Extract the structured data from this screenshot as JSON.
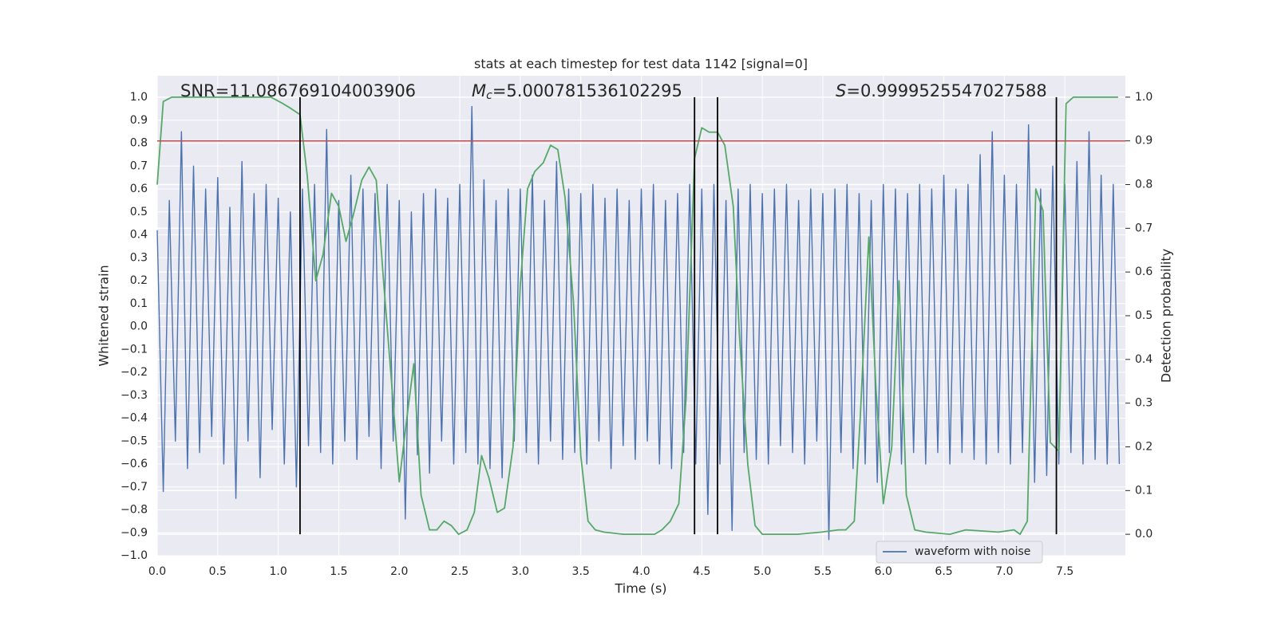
{
  "chart_data": {
    "type": "line",
    "title": "stats at each timestep for test data 1142 [signal=0]",
    "x_label": "Time (s)",
    "y_label": "Whitened strain",
    "y2_label": "Detection probability",
    "xlim": [
      0,
      8.0
    ],
    "ylim": [
      -1.0,
      1.094
    ],
    "y2lim": [
      -0.049,
      1.049
    ],
    "xticks": [
      {
        "value": 0,
        "label": "0.0"
      },
      0.5,
      {
        "value": 1,
        "label": "1.0"
      },
      1.5,
      {
        "value": 2,
        "label": "2.0"
      },
      2.5,
      {
        "value": 3,
        "label": "3.0"
      },
      3.5,
      {
        "value": 4,
        "label": "4.0"
      },
      4.5,
      {
        "value": 5,
        "label": "5.0"
      },
      5.5,
      {
        "value": 6,
        "label": "6.0"
      },
      6.5,
      {
        "value": 7,
        "label": "7.0"
      },
      7.5
    ],
    "yticks": [
      {
        "value": -1,
        "label": "−1.0"
      },
      {
        "value": -0.9,
        "label": "−0.9"
      },
      {
        "value": -0.8,
        "label": "−0.8"
      },
      {
        "value": -0.7,
        "label": "−0.7"
      },
      {
        "value": -0.6,
        "label": "−0.6"
      },
      {
        "value": -0.5,
        "label": "−0.5"
      },
      {
        "value": -0.4,
        "label": "−0.4"
      },
      {
        "value": -0.3,
        "label": "−0.3"
      },
      {
        "value": -0.2,
        "label": "−0.2"
      },
      {
        "value": -0.1,
        "label": "−0.1"
      },
      {
        "value": 0,
        "label": "0.0"
      },
      0.1,
      0.2,
      0.3,
      0.4,
      0.5,
      0.6,
      0.7,
      0.8,
      0.9,
      {
        "value": 1,
        "label": "1.0"
      }
    ],
    "y2ticks": [
      {
        "value": 0,
        "label": "0.0"
      },
      0.1,
      0.2,
      0.3,
      0.4,
      0.5,
      0.6,
      0.7,
      0.8,
      0.9,
      {
        "value": 1,
        "label": "1.0"
      }
    ],
    "grid": true,
    "legend": "lower right",
    "annotations": [
      {
        "text": "SNR=11.086769104003906"
      },
      {
        "symbol": "M",
        "sub": "c",
        "text": "=5.000781536102295"
      },
      {
        "symbol": "S",
        "text": "=0.9999525547027588"
      }
    ],
    "hline": {
      "y": 0.9,
      "axis": "y2",
      "color": "#c44e52"
    },
    "vlines": {
      "x": [
        1.18,
        4.44,
        4.63,
        7.43
      ],
      "ymin": 0,
      "ymax": 1,
      "axis": "y2",
      "color": "#000000"
    },
    "series": [
      {
        "name": "waveform with noise",
        "color": "#4c72b0",
        "x": [
          0,
          0.05,
          0.1,
          0.15,
          0.2,
          0.25,
          0.3,
          0.35,
          0.4,
          0.45,
          0.5,
          0.55,
          0.6,
          0.65,
          0.7,
          0.75,
          0.8,
          0.85,
          0.9,
          0.95,
          1,
          1.05,
          1.1,
          1.15,
          1.2,
          1.25,
          1.3,
          1.35,
          1.4,
          1.45,
          1.5,
          1.55,
          1.6,
          1.65,
          1.7,
          1.75,
          1.8,
          1.85,
          1.9,
          1.95,
          2,
          2.05,
          2.1,
          2.15,
          2.2,
          2.25,
          2.3,
          2.35,
          2.4,
          2.45,
          2.5,
          2.55,
          2.6,
          2.65,
          2.7,
          2.75,
          2.8,
          2.85,
          2.9,
          2.95,
          3,
          3.05,
          3.1,
          3.15,
          3.2,
          3.25,
          3.3,
          3.35,
          3.4,
          3.45,
          3.5,
          3.55,
          3.6,
          3.65,
          3.7,
          3.75,
          3.8,
          3.85,
          3.9,
          3.95,
          4,
          4.05,
          4.1,
          4.15,
          4.2,
          4.25,
          4.3,
          4.35,
          4.4,
          4.45,
          4.5,
          4.55,
          4.6,
          4.65,
          4.7,
          4.75,
          4.8,
          4.85,
          4.9,
          4.95,
          5,
          5.05,
          5.1,
          5.15,
          5.2,
          5.25,
          5.3,
          5.35,
          5.4,
          5.45,
          5.5,
          5.55,
          5.6,
          5.65,
          5.7,
          5.75,
          5.8,
          5.85,
          5.9,
          5.95,
          6,
          6.05,
          6.1,
          6.15,
          6.2,
          6.25,
          6.3,
          6.35,
          6.4,
          6.45,
          6.5,
          6.55,
          6.6,
          6.65,
          6.7,
          6.75,
          6.8,
          6.85,
          6.9,
          6.95,
          7,
          7.05,
          7.1,
          7.15,
          7.2,
          7.25,
          7.3,
          7.35,
          7.4,
          7.45,
          7.5,
          7.55,
          7.6,
          7.65,
          7.7,
          7.75,
          7.8,
          7.85,
          7.9,
          7.95
        ],
        "values": [
          0.42,
          -0.72,
          0.55,
          -0.5,
          0.85,
          -0.62,
          0.7,
          -0.55,
          0.6,
          -0.48,
          0.65,
          -0.6,
          0.52,
          -0.75,
          0.72,
          -0.5,
          0.58,
          -0.66,
          0.62,
          -0.45,
          0.56,
          -0.6,
          0.5,
          -0.7,
          0.6,
          -0.52,
          0.62,
          -0.55,
          0.86,
          -0.6,
          0.55,
          -0.5,
          0.66,
          -0.58,
          0.6,
          -0.48,
          0.58,
          -0.62,
          0.62,
          -0.5,
          0.55,
          -0.84,
          0.5,
          -0.56,
          0.58,
          -0.64,
          0.6,
          -0.5,
          0.56,
          -0.6,
          0.62,
          -0.55,
          0.96,
          -0.6,
          0.64,
          -0.62,
          0.55,
          -0.66,
          0.6,
          -0.5,
          0.6,
          -0.55,
          0.66,
          -0.6,
          0.55,
          -0.5,
          0.72,
          -0.58,
          0.6,
          -0.55,
          0.58,
          -0.6,
          0.62,
          -0.5,
          0.56,
          -0.62,
          0.6,
          -0.52,
          0.55,
          -0.58,
          0.6,
          -0.5,
          0.62,
          -0.6,
          0.55,
          -0.62,
          0.58,
          -0.55,
          0.62,
          -0.6,
          0.6,
          -0.82,
          0.62,
          -0.6,
          0.55,
          -0.89,
          0.6,
          -0.55,
          0.62,
          -0.58,
          0.58,
          -0.6,
          0.6,
          -0.52,
          0.62,
          -0.55,
          0.55,
          -0.6,
          0.6,
          -0.5,
          0.58,
          -0.93,
          0.6,
          -0.55,
          0.62,
          -0.62,
          0.58,
          -0.6,
          0.55,
          -0.68,
          0.62,
          -0.55,
          0.6,
          -0.6,
          0.58,
          -0.55,
          0.62,
          -0.6,
          0.6,
          -0.55,
          0.66,
          -0.6,
          0.6,
          -0.55,
          0.62,
          -0.58,
          0.75,
          -0.6,
          0.85,
          -0.55,
          0.66,
          -0.6,
          0.62,
          -0.55,
          0.88,
          -0.68,
          0.6,
          -0.65,
          0.7,
          -0.6,
          0.62,
          -0.55,
          0.72,
          -0.6,
          0.85,
          -0.58,
          0.66,
          -0.6,
          0.62,
          -0.6
        ]
      },
      {
        "color": "#55a868",
        "axis": "y2",
        "x": [
          0,
          0.05,
          0.12,
          0.94,
          1.04,
          1.1,
          1.18,
          1.24,
          1.31,
          1.37,
          1.44,
          1.5,
          1.56,
          1.62,
          1.69,
          1.75,
          1.81,
          1.87,
          1.93,
          2.0,
          2.06,
          2.12,
          2.18,
          2.25,
          2.31,
          2.37,
          2.43,
          2.49,
          2.56,
          2.62,
          2.68,
          2.74,
          2.81,
          2.87,
          2.94,
          3.0,
          3.06,
          3.12,
          3.19,
          3.25,
          3.31,
          3.37,
          3.44,
          3.5,
          3.56,
          3.62,
          3.69,
          3.85,
          4.11,
          4.17,
          4.24,
          4.31,
          4.37,
          4.44,
          4.5,
          4.56,
          4.63,
          4.69,
          4.76,
          4.81,
          4.88,
          4.94,
          5.0,
          5.29,
          5.49,
          5.63,
          5.69,
          5.76,
          5.81,
          5.88,
          5.94,
          6.0,
          6.07,
          6.13,
          6.19,
          6.26,
          6.35,
          6.55,
          6.68,
          6.95,
          7.08,
          7.13,
          7.19,
          7.26,
          7.32,
          7.38,
          7.45,
          7.51,
          7.57,
          7.67,
          7.75,
          7.94
        ],
        "values": [
          0.8,
          0.99,
          1.0,
          1.0,
          0.985,
          0.975,
          0.96,
          0.82,
          0.58,
          0.64,
          0.78,
          0.75,
          0.67,
          0.73,
          0.81,
          0.84,
          0.81,
          0.58,
          0.37,
          0.12,
          0.26,
          0.39,
          0.09,
          0.01,
          0.01,
          0.03,
          0.02,
          0.0,
          0.01,
          0.05,
          0.18,
          0.13,
          0.05,
          0.06,
          0.2,
          0.57,
          0.79,
          0.83,
          0.85,
          0.89,
          0.88,
          0.77,
          0.53,
          0.18,
          0.03,
          0.01,
          0.005,
          0.0,
          0.0,
          0.01,
          0.03,
          0.07,
          0.31,
          0.86,
          0.93,
          0.92,
          0.92,
          0.89,
          0.75,
          0.46,
          0.16,
          0.02,
          0.0,
          0.0,
          0.005,
          0.01,
          0.01,
          0.03,
          0.27,
          0.68,
          0.33,
          0.07,
          0.2,
          0.58,
          0.09,
          0.01,
          0.005,
          0.0,
          0.01,
          0.005,
          0.01,
          0.0,
          0.03,
          0.79,
          0.74,
          0.21,
          0.19,
          0.985,
          1.0,
          1.0,
          1.0,
          1.0
        ]
      }
    ]
  }
}
